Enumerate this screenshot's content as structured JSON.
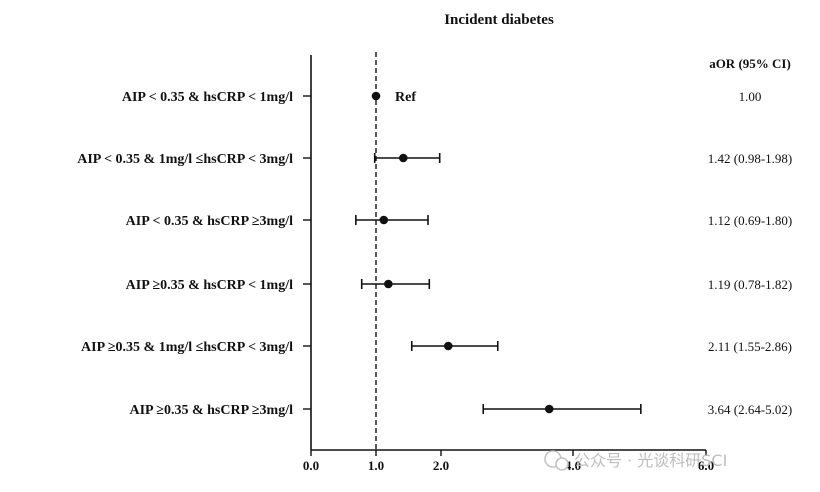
{
  "chart_data": {
    "type": "forest",
    "title": "Incident diabetes",
    "estimate_header": "aOR (95% CI)",
    "reference_label": "Ref",
    "reference_value": 1.0,
    "xlim": [
      0,
      6
    ],
    "xticks": [
      "0.0",
      "1.0",
      "2.0",
      "4.0",
      "6.0"
    ],
    "grid": false,
    "rows": [
      {
        "label": "AIP < 0.35 & hsCRP < 1mg/l",
        "or": 1.0,
        "lo": null,
        "hi": null,
        "text": "1.00",
        "is_ref": true
      },
      {
        "label": "AIP < 0.35 & 1mg/l ≤hsCRP < 3mg/l",
        "or": 1.42,
        "lo": 0.98,
        "hi": 1.98,
        "text": "1.42 (0.98-1.98)"
      },
      {
        "label": "AIP < 0.35 & hsCRP ≥3mg/l",
        "or": 1.12,
        "lo": 0.69,
        "hi": 1.8,
        "text": "1.12 (0.69-1.80)"
      },
      {
        "label": "AIP ≥0.35 & hsCRP < 1mg/l",
        "or": 1.19,
        "lo": 0.78,
        "hi": 1.82,
        "text": "1.19 (0.78-1.82)"
      },
      {
        "label": "AIP ≥0.35 & 1mg/l ≤hsCRP < 3mg/l",
        "or": 2.11,
        "lo": 1.55,
        "hi": 2.86,
        "text": "2.11 (1.55-2.86)"
      },
      {
        "label": "AIP ≥0.35 & hsCRP ≥3mg/l",
        "or": 3.64,
        "lo": 2.64,
        "hi": 5.02,
        "text": "3.64 (2.64-5.02)"
      }
    ]
  },
  "watermark": "公众号 · 光谈科研SCI"
}
